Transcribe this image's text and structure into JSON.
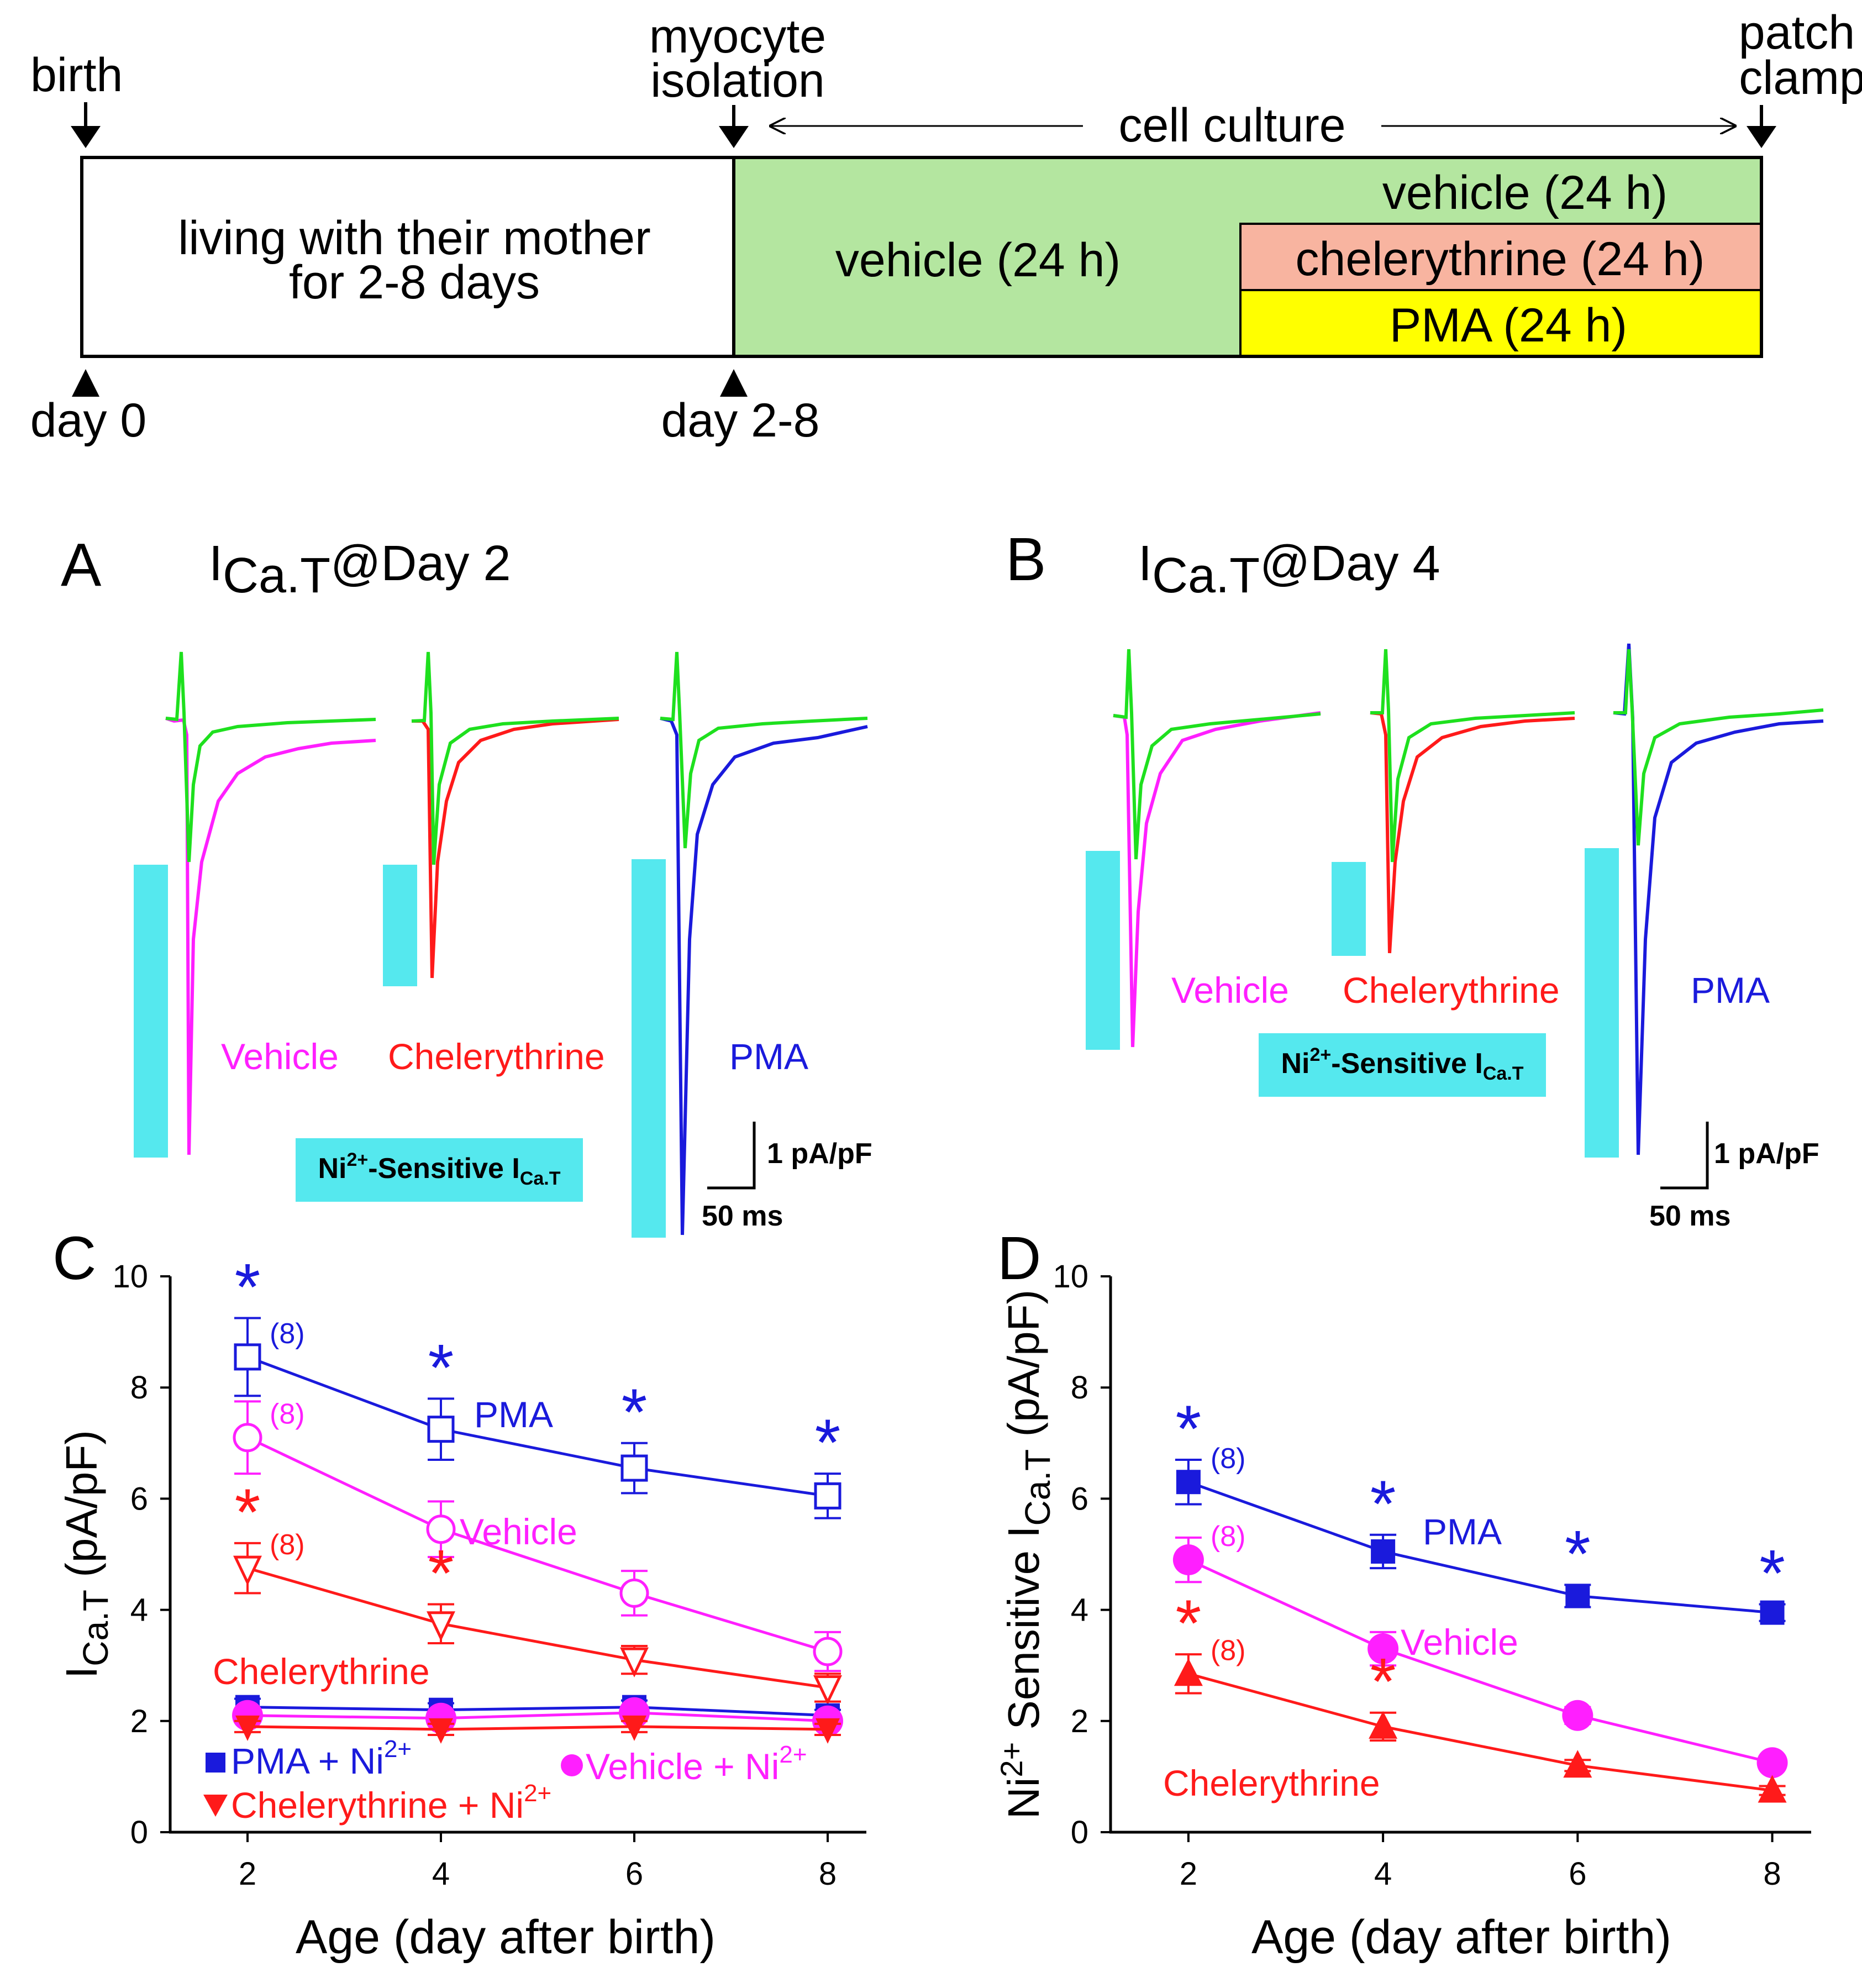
{
  "colors": {
    "blue": "#1a1adc",
    "magenta": "#ff1fff",
    "red": "#ff1a1a",
    "green": "#1ee01e",
    "cyan": "#55e8ee",
    "culture_green": "#b4e6a0",
    "salmon": "#f8b4a0",
    "yellow": "#ffff00"
  },
  "timeline": {
    "birth": "birth",
    "myocyte": "myocyte",
    "isolation": "isolation",
    "patch": "patch",
    "clamp": "clamp",
    "cell_culture": "cell culture",
    "living_line1": "living with their mother",
    "living_line2": "for 2-8 days",
    "vehicle_main": "vehicle (24 h)",
    "vehicle_top": "vehicle (24 h)",
    "chelerythrine": "chelerythrine (24 h)",
    "pma": "PMA (24 h)",
    "day0": "day 0",
    "day28": "day 2-8"
  },
  "panelA": {
    "letter": "A",
    "title_main": "I",
    "title_sub": "Ca.T",
    "title_rest": "@Day 2",
    "vehicle": "Vehicle",
    "chelerythrine": "Chelerythrine",
    "pma": "PMA",
    "ni_label": "Ni",
    "ni_sup": "2+",
    "ni_rest": "-Sensitive I",
    "ni_sub": "Ca.T",
    "scale_y": "1 pA/pF",
    "scale_x": "50 ms"
  },
  "panelB": {
    "letter": "B",
    "title_main": "I",
    "title_sub": "Ca.T",
    "title_rest": "@Day 4",
    "vehicle": "Vehicle",
    "chelerythrine": "Chelerythrine",
    "pma": "PMA",
    "ni_label": "Ni",
    "ni_sup": "2+",
    "ni_rest": "-Sensitive I",
    "ni_sub": "Ca.T",
    "scale_y": "1 pA/pF",
    "scale_x": "50 ms"
  },
  "chart_data": [
    {
      "panel": "C",
      "type": "line",
      "ylabel_main": "I",
      "ylabel_sub": "Ca.T",
      "ylabel_rest": " (pA/pF)",
      "xlabel": "Age (day after birth)",
      "x": [
        2,
        4,
        6,
        8
      ],
      "xticks": [
        "2",
        "4",
        "6",
        "8"
      ],
      "yticks": [
        "0",
        "2",
        "4",
        "6",
        "8",
        "10"
      ],
      "ylim": [
        0,
        10
      ],
      "xlim": [
        1.2,
        8.4
      ],
      "series": [
        {
          "name": "PMA",
          "values": [
            8.55,
            7.25,
            6.55,
            6.05
          ],
          "err": [
            0.7,
            0.55,
            0.45,
            0.4
          ],
          "marker": "open-square",
          "color": "blue",
          "n": "(8)",
          "sig": [
            true,
            true,
            true,
            true
          ]
        },
        {
          "name": "Vehicle",
          "values": [
            7.1,
            5.45,
            4.3,
            3.25
          ],
          "err": [
            0.65,
            0.5,
            0.4,
            0.35
          ],
          "marker": "open-circle",
          "color": "magenta",
          "n": "(8)",
          "sig": [
            false,
            false,
            false,
            false
          ]
        },
        {
          "name": "Chelerythrine",
          "values": [
            4.75,
            3.75,
            3.1,
            2.6
          ],
          "err": [
            0.45,
            0.35,
            0.25,
            0.25
          ],
          "marker": "open-tri-down",
          "color": "red",
          "n": "(8)",
          "sig": [
            true,
            true,
            false,
            false
          ]
        },
        {
          "name": "PMA + Ni",
          "sup": "2+",
          "values": [
            2.25,
            2.2,
            2.25,
            2.1
          ],
          "err": [
            0.15,
            0.12,
            0.12,
            0.1
          ],
          "marker": "filled-square",
          "color": "blue"
        },
        {
          "name": "Vehicle + Ni",
          "sup": "2+",
          "values": [
            2.1,
            2.05,
            2.15,
            2.0
          ],
          "err": [
            0.12,
            0.1,
            0.1,
            0.1
          ],
          "marker": "filled-circle",
          "color": "magenta"
        },
        {
          "name": "Chelerythrine + Ni",
          "sup": "2+",
          "values": [
            1.9,
            1.85,
            1.9,
            1.85
          ],
          "err": [
            0.1,
            0.1,
            0.1,
            0.1
          ],
          "marker": "filled-tri-down",
          "color": "red"
        }
      ]
    },
    {
      "panel": "D",
      "type": "line",
      "ylabel_pre": "Ni",
      "ylabel_sup": "2+",
      "ylabel_main": " Sensitive I",
      "ylabel_sub": "Ca.T",
      "ylabel_rest": " (pA/pF)",
      "xlabel": "Age (day after birth)",
      "x": [
        2,
        4,
        6,
        8
      ],
      "xticks": [
        "2",
        "4",
        "6",
        "8"
      ],
      "yticks": [
        "0",
        "2",
        "4",
        "6",
        "8",
        "10"
      ],
      "ylim": [
        0,
        10
      ],
      "xlim": [
        1.2,
        8.4
      ],
      "series": [
        {
          "name": "PMA",
          "values": [
            6.3,
            5.05,
            4.25,
            3.95
          ],
          "err": [
            0.4,
            0.3,
            0.2,
            0.15
          ],
          "marker": "filled-square",
          "color": "blue",
          "n": "(8)",
          "sig": [
            true,
            true,
            true,
            true
          ]
        },
        {
          "name": "Vehicle",
          "values": [
            4.9,
            3.3,
            2.1,
            1.25
          ],
          "err": [
            0.4,
            0.3,
            0.15,
            0.1
          ],
          "marker": "filled-circle",
          "color": "magenta",
          "n": "(8)",
          "sig": [
            false,
            false,
            false,
            false
          ]
        },
        {
          "name": "Chelerythrine",
          "values": [
            2.85,
            1.9,
            1.2,
            0.75
          ],
          "err": [
            0.35,
            0.25,
            0.1,
            0.08
          ],
          "marker": "filled-tri-up",
          "color": "red",
          "n": "(8)",
          "sig": [
            true,
            true,
            false,
            false
          ]
        }
      ]
    }
  ]
}
